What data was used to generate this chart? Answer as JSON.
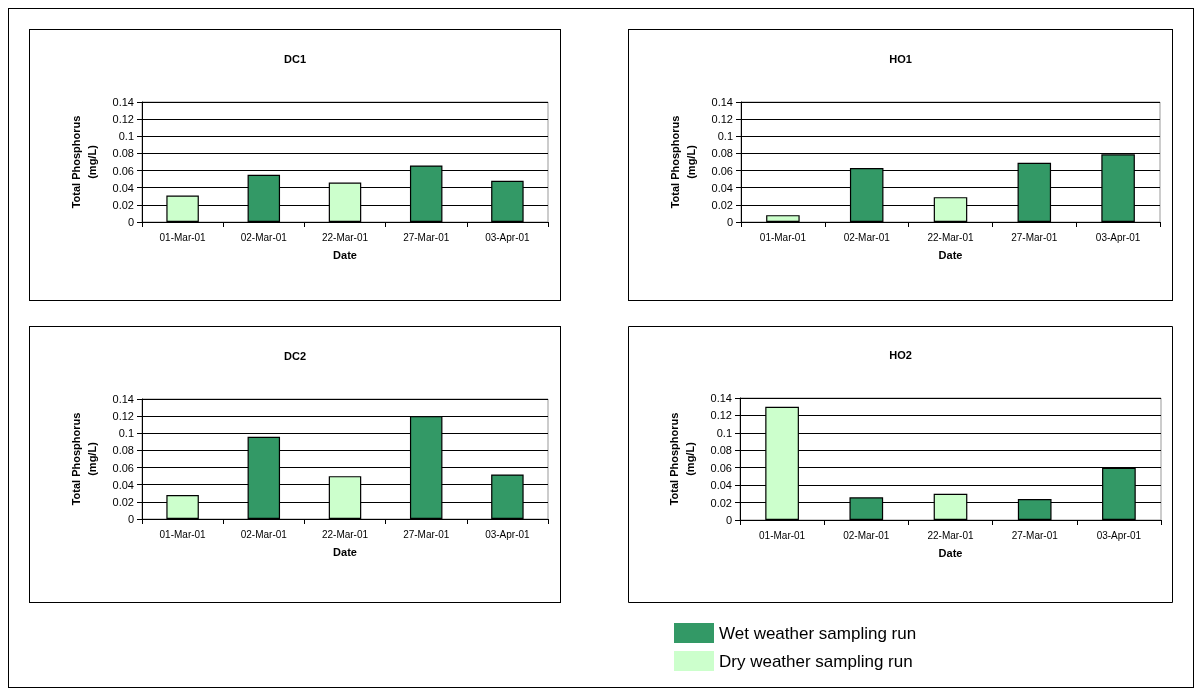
{
  "chart_data": [
    {
      "type": "bar",
      "title": "DC1",
      "xlabel": "Date",
      "ylabel": "Total Phosphorus\n(mg/L)",
      "categories": [
        "01-Mar-01",
        "02-Mar-01",
        "22-Mar-01",
        "27-Mar-01",
        "03-Apr-01"
      ],
      "stacked": true,
      "series": [
        {
          "color": "#339966",
          "values": [
            null,
            0.055,
            null,
            0.066,
            0.048
          ]
        },
        {
          "color": "#ccffcc",
          "values": [
            0.031,
            null,
            0.046,
            null,
            null
          ]
        }
      ],
      "ylim": [
        0,
        0.14
      ],
      "yticks": [
        0,
        0.02,
        0.04,
        0.06,
        0.08,
        0.1,
        0.12,
        0.14
      ],
      "grid": "y"
    },
    {
      "type": "bar",
      "title": "HO1",
      "xlabel": "Date",
      "ylabel": "Total Phosphorus\n(mg/L)",
      "categories": [
        "01-Mar-01",
        "02-Mar-01",
        "22-Mar-01",
        "27-Mar-01",
        "03-Apr-01"
      ],
      "stacked": true,
      "series": [
        {
          "color": "#339966",
          "values": [
            null,
            0.063,
            null,
            0.069,
            0.079
          ]
        },
        {
          "color": "#ccffcc",
          "values": [
            0.008,
            null,
            0.029,
            null,
            null
          ]
        }
      ],
      "ylim": [
        0,
        0.14
      ],
      "yticks": [
        0,
        0.02,
        0.04,
        0.06,
        0.08,
        0.1,
        0.12,
        0.14
      ],
      "grid": "y"
    },
    {
      "type": "bar",
      "title": "DC2",
      "xlabel": "Date",
      "ylabel": "Total Phosphorus\n(mg/L)",
      "categories": [
        "01-Mar-01",
        "02-Mar-01",
        "22-Mar-01",
        "27-Mar-01",
        "03-Apr-01"
      ],
      "stacked": true,
      "series": [
        {
          "color": "#339966",
          "values": [
            null,
            0.096,
            null,
            0.12,
            0.052
          ]
        },
        {
          "color": "#ccffcc",
          "values": [
            0.028,
            null,
            0.05,
            null,
            null
          ]
        }
      ],
      "ylim": [
        0,
        0.14
      ],
      "yticks": [
        0,
        0.02,
        0.04,
        0.06,
        0.08,
        0.1,
        0.12,
        0.14
      ],
      "grid": "y"
    },
    {
      "type": "bar",
      "title": "HO2",
      "xlabel": "Date",
      "ylabel": "Total Phosphorus\n(mg/L)",
      "categories": [
        "01-Mar-01",
        "02-Mar-01",
        "22-Mar-01",
        "27-Mar-01",
        "03-Apr-01"
      ],
      "stacked": true,
      "legend": "bottom",
      "series": [
        {
          "name": "Wet weather sampling run",
          "color": "#339966",
          "values": [
            null,
            0.026,
            null,
            0.024,
            0.06
          ]
        },
        {
          "name": "Dry weather sampling run",
          "color": "#ccffcc",
          "values": [
            0.13,
            null,
            0.03,
            null,
            null
          ]
        }
      ],
      "ylim": [
        0,
        0.14
      ],
      "yticks": [
        0,
        0.02,
        0.04,
        0.06,
        0.08,
        0.1,
        0.12,
        0.14
      ],
      "grid": "y"
    }
  ]
}
